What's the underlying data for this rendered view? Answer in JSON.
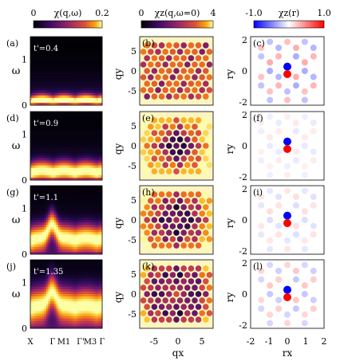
{
  "colorbars": {
    "col1": {
      "label": "χ(q,ω)",
      "min": "0",
      "max": "0.2",
      "colormap": "inferno"
    },
    "col2": {
      "label": "χz(q,ω=0)",
      "min": "0",
      "max": "4",
      "colormap": "inferno"
    },
    "col3": {
      "label": "χz(r)",
      "min": "-1.0",
      "max": "1.0",
      "colormap": "bwr"
    }
  },
  "rows": [
    {
      "panels": [
        "(a)",
        "(b)",
        "(c)"
      ],
      "tprime": "t'=0.4"
    },
    {
      "panels": [
        "(d)",
        "(e)",
        "(f)"
      ],
      "tprime": "t'=0.9"
    },
    {
      "panels": [
        "(g)",
        "(h)",
        "(i)"
      ],
      "tprime": "t'=1.1"
    },
    {
      "panels": [
        "(j)",
        "(k)",
        "(l)"
      ],
      "tprime": "t'=1.35"
    }
  ],
  "axes": {
    "omega": {
      "label": "ω",
      "ticks": [
        "0",
        "1"
      ]
    },
    "path": {
      "ticks": [
        "X",
        "Γ",
        "M1",
        "Γ'",
        "M3",
        "Γ"
      ]
    },
    "q": {
      "xlabel": "qx",
      "ylabel": "qy",
      "ticks": [
        "-5",
        "0",
        "5"
      ]
    },
    "r": {
      "xlabel": "rx",
      "ylabel": "ry",
      "ticks": [
        "-2",
        "-1",
        "0",
        "1",
        "2"
      ]
    }
  },
  "chart_data": [
    {
      "type": "heatmap",
      "description": "χ(q,ω) along X–Γ–M1–Γ'–M3–Γ path",
      "ylim": [
        0,
        1.5
      ],
      "peak_omega_by_row": [
        0.05,
        0.15,
        0.3,
        0.45
      ],
      "colormap": "inferno",
      "value_range": [
        0,
        0.2
      ]
    },
    {
      "type": "heatmap",
      "description": "χz(q,ω=0) on kagome reciprocal lattice",
      "xlim": [
        -8,
        8
      ],
      "ylim": [
        -8,
        8
      ],
      "value_range": [
        0,
        4
      ]
    },
    {
      "type": "scatter",
      "description": "χz(r) real-space correlation",
      "xlim": [
        -2,
        2
      ],
      "ylim": [
        -2,
        2
      ],
      "value_range": [
        -1,
        1
      ],
      "center_spins": [
        {
          "x": 0,
          "y": 0.5,
          "value": -1.0
        },
        {
          "x": 0,
          "y": 0,
          "value": 1.0
        }
      ]
    }
  ]
}
